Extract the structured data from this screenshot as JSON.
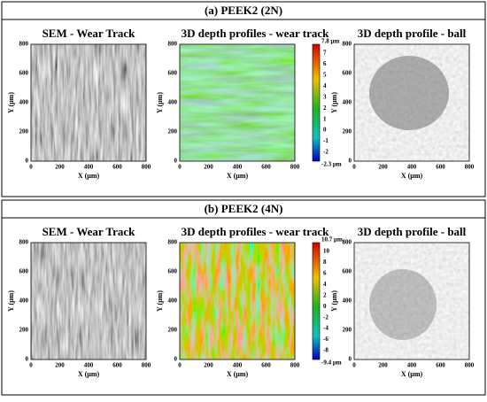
{
  "sections": [
    {
      "title": "(a) PEEK2 (2N)",
      "panels": [
        {
          "title": "SEM - Wear Track",
          "xlabel": "X (μm)",
          "ylabel": "Y (μm)",
          "xticks": [
            0,
            200,
            400,
            600,
            800
          ],
          "yticks": [
            0,
            200,
            400,
            600,
            800
          ]
        },
        {
          "title": "3D depth profiles - wear track",
          "xlabel": "X (μm)",
          "ylabel": "Y (μm)",
          "xticks": [
            0,
            200,
            400,
            600,
            800
          ],
          "yticks": [
            0,
            200,
            400,
            600,
            800
          ],
          "colorbar": {
            "max_label": "7.8 μm",
            "min_label": "-2.3 μm",
            "ticks": [
              7,
              6,
              5,
              4,
              3,
              2,
              1,
              0,
              -1,
              -2
            ]
          }
        },
        {
          "title": "3D depth profile - ball",
          "xlabel": "X (μm)",
          "ylabel": "Y (μm)",
          "xticks": [
            0,
            200,
            400,
            600,
            800
          ],
          "yticks": [
            0,
            200,
            400,
            600,
            800
          ]
        }
      ]
    },
    {
      "title": "(b) PEEK2 (4N)",
      "panels": [
        {
          "title": "SEM - Wear Track",
          "xlabel": "X (μm)",
          "ylabel": "Y (μm)",
          "xticks": [
            0,
            200,
            400,
            600,
            800
          ],
          "yticks": [
            0,
            200,
            400,
            600,
            800
          ]
        },
        {
          "title": "3D depth profiles - wear track",
          "xlabel": "X (μm)",
          "ylabel": "Y (μm)",
          "xticks": [
            0,
            200,
            400,
            600,
            800
          ],
          "yticks": [
            0,
            200,
            400,
            600,
            800
          ],
          "colorbar": {
            "max_label": "10.7 μm",
            "min_label": "-9.4 μm",
            "ticks": [
              10,
              8,
              6,
              4,
              2,
              0,
              -2,
              -4,
              -6,
              -8
            ]
          }
        },
        {
          "title": "3D depth profile - ball",
          "xlabel": "X (μm)",
          "ylabel": "Y (μm)",
          "xticks": [
            0,
            200,
            400,
            600,
            800
          ],
          "yticks": [
            0,
            200,
            400,
            600,
            800
          ]
        }
      ]
    }
  ]
}
